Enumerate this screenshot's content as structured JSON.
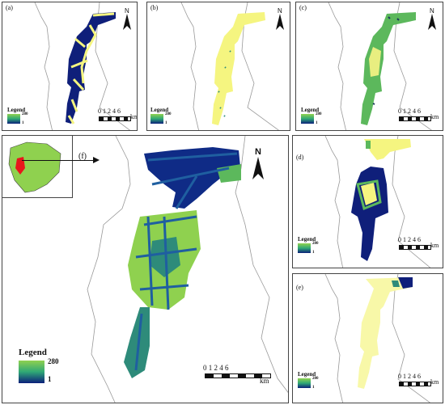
{
  "panels": {
    "a": {
      "label": "(a)"
    },
    "b": {
      "label": "(b)"
    },
    "c": {
      "label": "(c)"
    },
    "d": {
      "label": "(d)"
    },
    "e": {
      "label": "(e)"
    },
    "f": {
      "label": "(f)"
    }
  },
  "legend": {
    "title": "Legend",
    "max": "280",
    "min": "1",
    "gradient": [
      "#fbfb8a",
      "#8fd14f",
      "#2fa876",
      "#1f5fa0",
      "#0b1f7a"
    ]
  },
  "scale_bar": {
    "ticks_small": "0 1 2    4    6",
    "ticks_large": "0  1  2       4       6",
    "unit": "km"
  },
  "north": {
    "label": "N"
  },
  "colors": {
    "dark_blue": "#0f1f7a",
    "yellow": "#f5f580",
    "light_yellow": "#f8f8a8",
    "green": "#5cb85c",
    "teal": "#2e8b7a",
    "light_green": "#8fd14f"
  }
}
